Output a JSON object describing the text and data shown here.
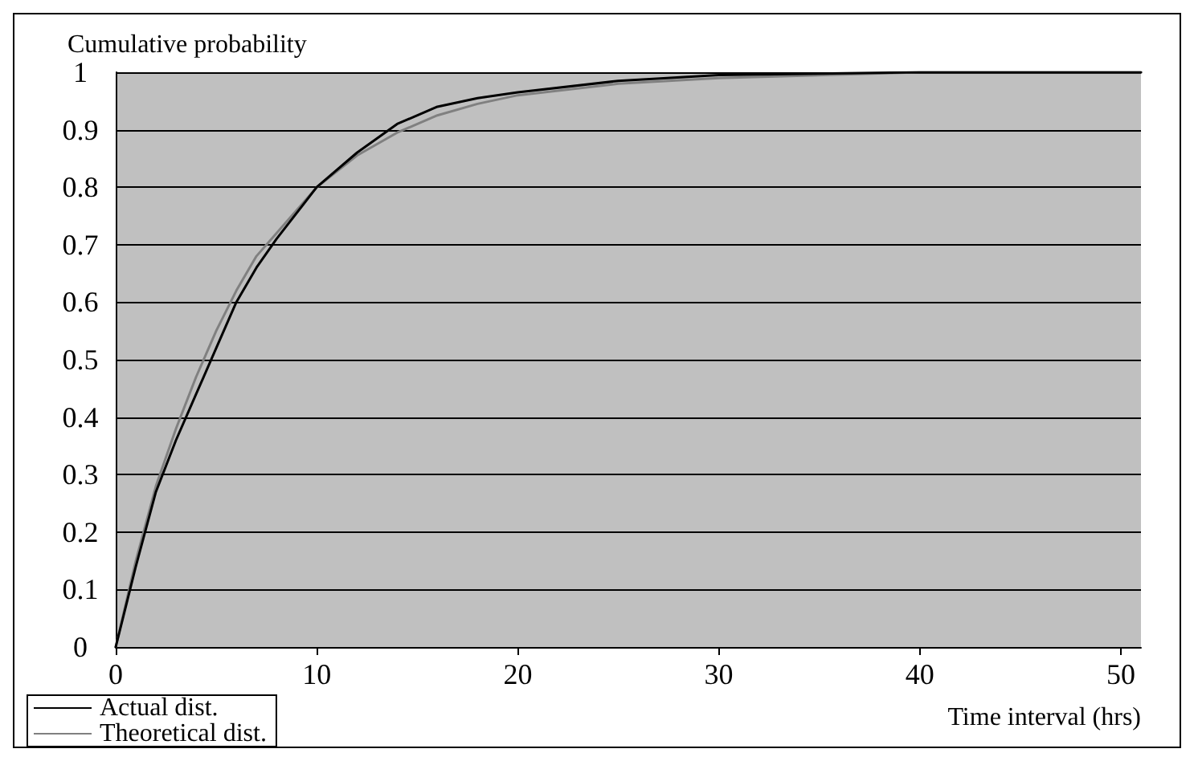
{
  "chart_data": {
    "type": "line",
    "xlabel": "Time interval (hrs)",
    "ylabel": "Cumulative probability",
    "xlim": [
      0,
      51
    ],
    "xticks": [
      0,
      10,
      20,
      30,
      40,
      50
    ],
    "ylim": [
      0,
      1
    ],
    "yticks": [
      0,
      0.1,
      0.2,
      0.3,
      0.4,
      0.5,
      0.6,
      0.7,
      0.8,
      0.9,
      1
    ],
    "grid": "y",
    "legend": "bottom left",
    "marker": "none",
    "line_style": "solid",
    "series": [
      {
        "name": "Actual dist.",
        "color": "#000000",
        "x": [
          0,
          1,
          2,
          3,
          4,
          5,
          6,
          7,
          8,
          10,
          12,
          14,
          16,
          18,
          20,
          25,
          30,
          40,
          51
        ],
        "values": [
          0,
          0.14,
          0.27,
          0.36,
          0.44,
          0.52,
          0.6,
          0.66,
          0.71,
          0.8,
          0.86,
          0.91,
          0.94,
          0.955,
          0.965,
          0.985,
          0.995,
          1,
          1
        ]
      },
      {
        "name": "Theoretical dist.",
        "color": "#808080",
        "x": [
          0,
          1,
          2,
          3,
          4,
          5,
          6,
          7,
          8,
          10,
          12,
          14,
          16,
          18,
          20,
          25,
          30,
          40,
          51
        ],
        "values": [
          0,
          0.15,
          0.28,
          0.38,
          0.47,
          0.55,
          0.62,
          0.68,
          0.72,
          0.8,
          0.855,
          0.895,
          0.925,
          0.945,
          0.96,
          0.98,
          0.99,
          1,
          1
        ]
      }
    ]
  }
}
